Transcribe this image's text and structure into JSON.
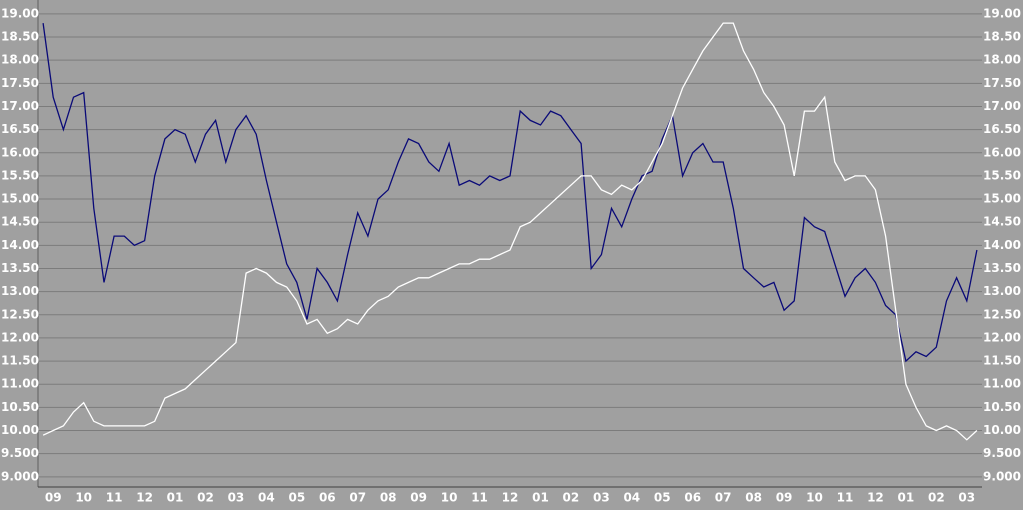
{
  "chart_data": {
    "type": "line",
    "categories": [
      null,
      "09",
      null,
      null,
      "10",
      null,
      null,
      "11",
      null,
      null,
      "12",
      null,
      null,
      "01",
      null,
      null,
      "02",
      null,
      null,
      "03",
      null,
      null,
      "04",
      null,
      null,
      "05",
      null,
      null,
      "06",
      null,
      null,
      "07",
      null,
      null,
      "08",
      null,
      null,
      "09",
      null,
      null,
      "10",
      null,
      null,
      "11",
      null,
      null,
      "12",
      null,
      null,
      "01",
      null,
      null,
      "02",
      null,
      null,
      "03",
      null,
      null,
      "04",
      null,
      null,
      "05",
      null,
      null,
      "06",
      null,
      null,
      "07",
      null,
      null,
      "08",
      null,
      null,
      "09",
      null,
      null,
      "10",
      null,
      null,
      "11",
      null,
      null,
      "12",
      null,
      null,
      "01",
      null,
      null,
      "02",
      null,
      null,
      "03",
      null
    ],
    "series": [
      {
        "color": "#0a0a78",
        "values": [
          18.8,
          17.2,
          16.5,
          17.2,
          17.3,
          14.8,
          13.2,
          14.2,
          14.2,
          14.0,
          14.1,
          15.5,
          16.3,
          16.5,
          16.4,
          15.8,
          16.4,
          16.7,
          15.8,
          16.5,
          16.8,
          16.4,
          15.4,
          14.5,
          13.6,
          13.2,
          12.4,
          13.5,
          13.2,
          12.8,
          13.8,
          14.7,
          14.2,
          15.0,
          15.2,
          15.8,
          16.3,
          16.2,
          15.8,
          15.6,
          16.2,
          15.3,
          15.4,
          15.3,
          15.5,
          15.4,
          15.5,
          16.9,
          16.7,
          16.6,
          16.9,
          16.8,
          16.5,
          16.2,
          13.5,
          13.8,
          14.8,
          14.4,
          15.0,
          15.5,
          15.6,
          16.3,
          16.8,
          15.5,
          16.0,
          16.2,
          15.8,
          15.8,
          14.8,
          13.5,
          13.3,
          13.1,
          13.2,
          12.6,
          12.8,
          14.6,
          14.4,
          14.3,
          13.6,
          12.9,
          13.3,
          13.5,
          13.2,
          12.7,
          12.5,
          11.5,
          11.7,
          11.6,
          11.8,
          12.8,
          13.3,
          12.8,
          13.9
        ]
      },
      {
        "color": "#ffffff",
        "values": [
          9.9,
          10.0,
          10.1,
          10.4,
          10.6,
          10.2,
          10.1,
          10.1,
          10.1,
          10.1,
          10.1,
          10.2,
          10.7,
          10.8,
          10.9,
          11.1,
          11.3,
          11.5,
          11.7,
          11.9,
          13.4,
          13.5,
          13.4,
          13.2,
          13.1,
          12.8,
          12.3,
          12.4,
          12.1,
          12.2,
          12.4,
          12.3,
          12.6,
          12.8,
          12.9,
          13.1,
          13.2,
          13.3,
          13.3,
          13.4,
          13.5,
          13.6,
          13.6,
          13.7,
          13.7,
          13.8,
          13.9,
          14.4,
          14.5,
          14.7,
          14.9,
          15.1,
          15.3,
          15.5,
          15.5,
          15.2,
          15.1,
          15.3,
          15.2,
          15.4,
          15.8,
          16.2,
          16.8,
          17.4,
          17.8,
          18.2,
          18.5,
          18.8,
          18.8,
          18.2,
          17.8,
          17.3,
          17.0,
          16.6,
          15.5,
          16.9,
          16.9,
          17.2,
          15.8,
          15.4,
          15.5,
          15.5,
          15.2,
          14.2,
          12.6,
          11.0,
          10.5,
          10.1,
          10.0,
          10.1,
          10.0,
          9.8,
          10.0
        ]
      }
    ],
    "ylim": [
      8.78,
      19.3
    ],
    "yticks": [
      {
        "value": 19,
        "label": "19.00"
      },
      {
        "value": 18.5,
        "label": "18.50"
      },
      {
        "value": 18,
        "label": "18.00"
      },
      {
        "value": 17.5,
        "label": "17.50"
      },
      {
        "value": 17,
        "label": "17.00"
      },
      {
        "value": 16.5,
        "label": "16.50"
      },
      {
        "value": 16,
        "label": "16.00"
      },
      {
        "value": 15.5,
        "label": "15.50"
      },
      {
        "value": 15,
        "label": "15.00"
      },
      {
        "value": 14.5,
        "label": "14.50"
      },
      {
        "value": 14,
        "label": "14.00"
      },
      {
        "value": 13.5,
        "label": "13.50"
      },
      {
        "value": 13,
        "label": "13.00"
      },
      {
        "value": 12.5,
        "label": "12.50"
      },
      {
        "value": 12,
        "label": "12.00"
      },
      {
        "value": 11.5,
        "label": "11.50"
      },
      {
        "value": 11,
        "label": "11.00"
      },
      {
        "value": 10.5,
        "label": "10.50"
      },
      {
        "value": 10,
        "label": "10.00"
      },
      {
        "value": 9.5,
        "label": "9.500"
      },
      {
        "value": 9,
        "label": "9.000"
      }
    ],
    "grid": true,
    "grid_color": "#7c7c7c"
  }
}
